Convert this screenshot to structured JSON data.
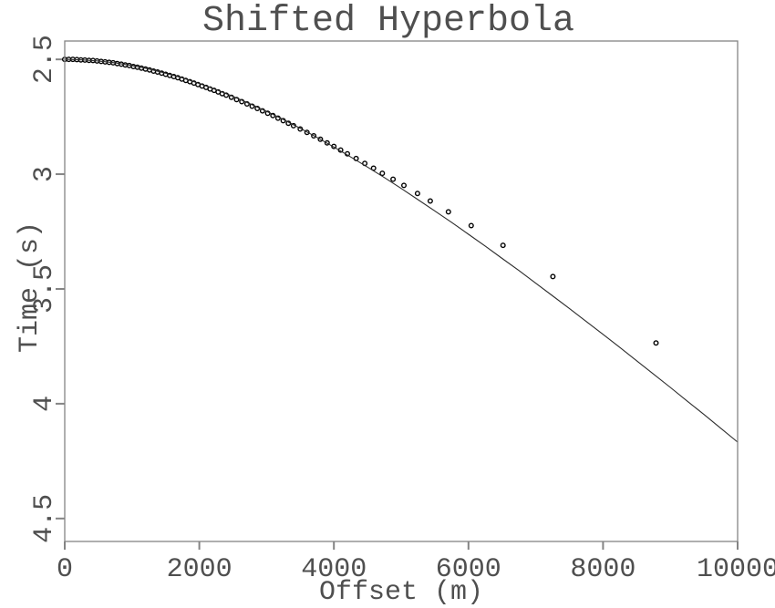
{
  "chart_data": {
    "type": "scatter+line",
    "title": "Shifted Hyperbola",
    "xlabel": "Offset (m)",
    "ylabel": "Time (s)",
    "x_range": [
      0,
      10000
    ],
    "y_range": [
      2.42,
      4.6
    ],
    "y_inverted": true,
    "grid": false,
    "legend": "none",
    "x_ticks": {
      "values": [
        0,
        2000,
        4000,
        6000,
        8000,
        10000
      ],
      "labels": [
        "0",
        "2000",
        "4000",
        "6000",
        "8000",
        "10000"
      ]
    },
    "y_ticks": {
      "values": [
        2.5,
        3.0,
        3.5,
        4.0,
        4.5
      ],
      "labels": [
        "2.5",
        "3",
        "3.5",
        "4",
        "4.5"
      ]
    },
    "series": [
      {
        "name": "traveltime-samples",
        "type": "scatter",
        "marker": "open-circle",
        "color": "#000000",
        "points": [
          [
            0,
            2.5
          ],
          [
            60,
            2.5
          ],
          [
            120,
            2.5
          ],
          [
            180,
            2.501
          ],
          [
            240,
            2.502
          ],
          [
            300,
            2.503
          ],
          [
            360,
            2.504
          ],
          [
            420,
            2.505
          ],
          [
            480,
            2.507
          ],
          [
            540,
            2.509
          ],
          [
            600,
            2.511
          ],
          [
            660,
            2.513
          ],
          [
            720,
            2.515
          ],
          [
            780,
            2.518
          ],
          [
            840,
            2.521
          ],
          [
            900,
            2.524
          ],
          [
            960,
            2.527
          ],
          [
            1020,
            2.531
          ],
          [
            1080,
            2.534
          ],
          [
            1140,
            2.538
          ],
          [
            1200,
            2.542
          ],
          [
            1260,
            2.546
          ],
          [
            1320,
            2.551
          ],
          [
            1380,
            2.555
          ],
          [
            1440,
            2.56
          ],
          [
            1500,
            2.565
          ],
          [
            1560,
            2.57
          ],
          [
            1620,
            2.575
          ],
          [
            1680,
            2.58
          ],
          [
            1740,
            2.586
          ],
          [
            1800,
            2.592
          ],
          [
            1860,
            2.597
          ],
          [
            1920,
            2.603
          ],
          [
            1980,
            2.61
          ],
          [
            2040,
            2.616
          ],
          [
            2100,
            2.622
          ],
          [
            2160,
            2.629
          ],
          [
            2220,
            2.635
          ],
          [
            2280,
            2.642
          ],
          [
            2340,
            2.649
          ],
          [
            2400,
            2.656
          ],
          [
            2477,
            2.665
          ],
          [
            2554,
            2.675
          ],
          [
            2631,
            2.684
          ],
          [
            2708,
            2.694
          ],
          [
            2785,
            2.704
          ],
          [
            2862,
            2.714
          ],
          [
            2939,
            2.724
          ],
          [
            3016,
            2.735
          ],
          [
            3093,
            2.745
          ],
          [
            3170,
            2.756
          ],
          [
            3247,
            2.767
          ],
          [
            3324,
            2.778
          ],
          [
            3400,
            2.789
          ],
          [
            3500,
            2.803
          ],
          [
            3600,
            2.818
          ],
          [
            3700,
            2.833
          ],
          [
            3800,
            2.848
          ],
          [
            3900,
            2.864
          ],
          [
            4000,
            2.879
          ],
          [
            4100,
            2.895
          ],
          [
            4200,
            2.911
          ],
          [
            4330,
            2.932
          ],
          [
            4460,
            2.953
          ],
          [
            4590,
            2.974
          ],
          [
            4720,
            2.996
          ],
          [
            4880,
            3.022
          ],
          [
            5040,
            3.049
          ],
          [
            5243,
            3.084
          ],
          [
            5432,
            3.117
          ],
          [
            5702,
            3.164
          ],
          [
            6041,
            3.224
          ],
          [
            6514,
            3.31
          ],
          [
            7255,
            3.446
          ],
          [
            8787,
            3.735
          ]
        ]
      },
      {
        "name": "shifted-hyperbola-curve",
        "type": "line",
        "color": "#2b2b2b",
        "points": [
          [
            0,
            2.5
          ],
          [
            250,
            2.502
          ],
          [
            500,
            2.507
          ],
          [
            750,
            2.515
          ],
          [
            1000,
            2.527
          ],
          [
            1250,
            2.542
          ],
          [
            1500,
            2.56
          ],
          [
            1750,
            2.581
          ],
          [
            2000,
            2.605
          ],
          [
            2250,
            2.632
          ],
          [
            2500,
            2.661
          ],
          [
            2750,
            2.693
          ],
          [
            3000,
            2.726
          ],
          [
            3250,
            2.762
          ],
          [
            3500,
            2.8
          ],
          [
            3750,
            2.84
          ],
          [
            4000,
            2.882
          ],
          [
            4250,
            2.925
          ],
          [
            4500,
            2.969
          ],
          [
            4750,
            3.015
          ],
          [
            5000,
            3.062
          ],
          [
            5250,
            3.111
          ],
          [
            5500,
            3.16
          ],
          [
            5750,
            3.21
          ],
          [
            6000,
            3.262
          ],
          [
            6250,
            3.314
          ],
          [
            6500,
            3.367
          ],
          [
            6750,
            3.42
          ],
          [
            7000,
            3.475
          ],
          [
            7250,
            3.53
          ],
          [
            7500,
            3.585
          ],
          [
            7750,
            3.642
          ],
          [
            8000,
            3.698
          ],
          [
            8250,
            3.755
          ],
          [
            8500,
            3.813
          ],
          [
            8750,
            3.871
          ],
          [
            9000,
            3.929
          ],
          [
            9250,
            3.988
          ],
          [
            9500,
            4.047
          ],
          [
            9750,
            4.107
          ],
          [
            10000,
            4.167
          ]
        ]
      }
    ]
  },
  "style": {
    "frame_color": "#848484",
    "tick_color": "#848484",
    "text_color": "#4f4f4f",
    "background": "#ffffff",
    "marker_fill": "#ffffff"
  }
}
